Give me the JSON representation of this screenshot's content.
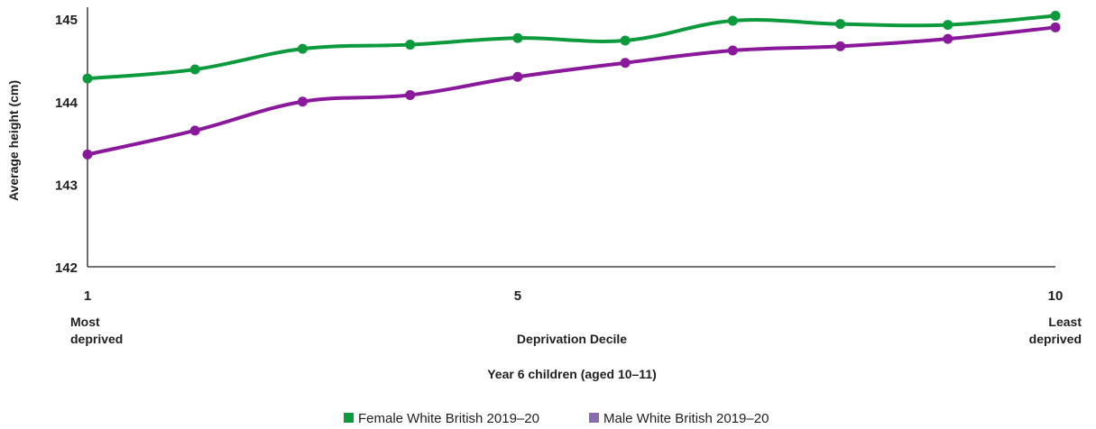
{
  "chart_data": {
    "type": "line",
    "x": [
      1,
      2,
      3,
      4,
      5,
      6,
      7,
      8,
      9,
      10
    ],
    "series": [
      {
        "name": "Female White British 2019–20",
        "color": "#0c9a3d",
        "values": [
          144.28,
          144.39,
          144.64,
          144.69,
          144.77,
          144.74,
          144.98,
          144.94,
          144.93,
          145.04
        ]
      },
      {
        "name": "Male White British 2019–20",
        "color": "#8a189b",
        "values": [
          143.36,
          143.65,
          144.0,
          144.08,
          144.3,
          144.47,
          144.62,
          144.67,
          144.76,
          144.9
        ]
      }
    ],
    "ylim": [
      142,
      145.1
    ],
    "yticks": [
      "142",
      "143",
      "144",
      "145"
    ],
    "xticks": [
      {
        "x": 1,
        "label": "1",
        "sub": [
          "Most",
          "deprived"
        ]
      },
      {
        "x": 5,
        "label": "5",
        "sub": []
      },
      {
        "x": 10,
        "label": "10",
        "sub": [
          "Least",
          "deprived"
        ]
      }
    ],
    "ylabel": "Average height (cm)",
    "xlabel": "Deprivation Decile",
    "xlabel2": "Year 6 children (aged 10–11)",
    "legend": {
      "placement": "bottom-center",
      "swatch_colors": [
        "#0c9a3d",
        "#8a6bb0"
      ]
    },
    "grid": false
  }
}
